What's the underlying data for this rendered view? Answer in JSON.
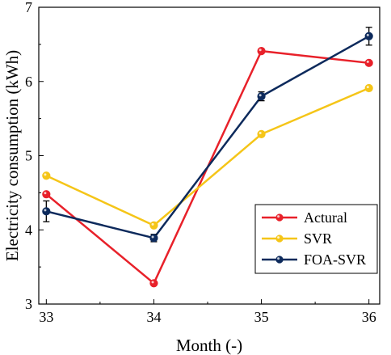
{
  "chart_data": {
    "type": "line",
    "title": "",
    "xlabel": "Month (-)",
    "ylabel": "Electricity consumption (kWh)",
    "x": [
      33,
      34,
      35,
      36
    ],
    "xticks": [
      "33",
      "34",
      "35",
      "36"
    ],
    "yticks": [
      "3",
      "4",
      "5",
      "6",
      "7"
    ],
    "xlim": [
      32.93,
      36.1
    ],
    "ylim": [
      3,
      7
    ],
    "grid": false,
    "legend_position": "bottom-right",
    "series": [
      {
        "name": "Actural",
        "color": "#e8212a",
        "values": [
          4.48,
          3.28,
          6.41,
          6.25
        ]
      },
      {
        "name": "SVR",
        "color": "#f5c518",
        "values": [
          4.73,
          4.06,
          5.29,
          5.91
        ]
      },
      {
        "name": "FOA-SVR",
        "color": "#0d2a5c",
        "values": [
          4.25,
          3.89,
          5.8,
          6.61
        ],
        "errors": [
          0.14,
          0.05,
          0.06,
          0.12
        ]
      }
    ]
  }
}
